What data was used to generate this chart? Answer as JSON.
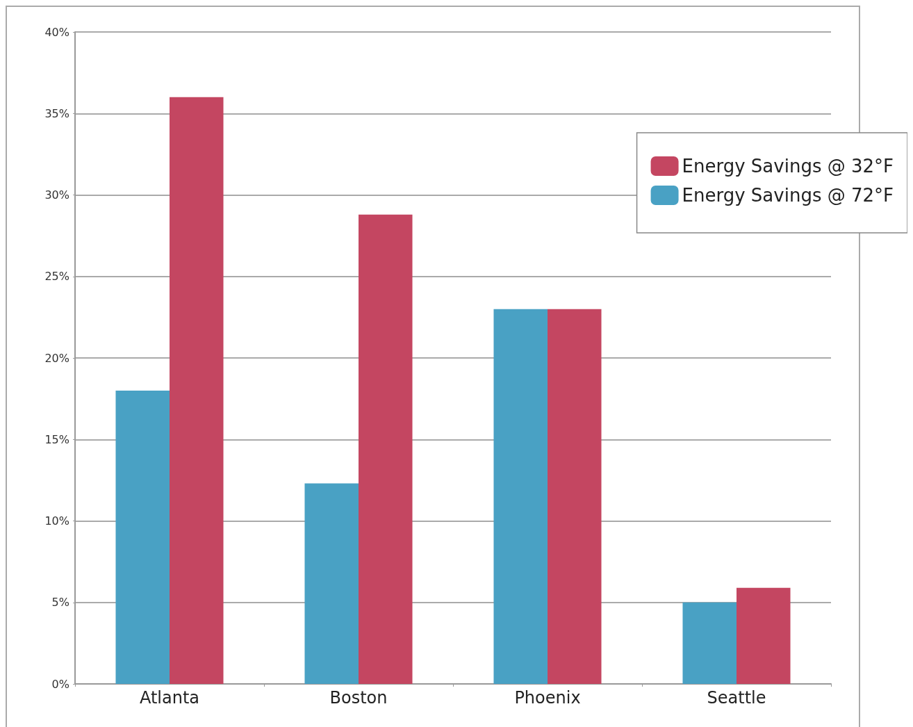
{
  "chart_data": {
    "type": "bar",
    "categories": [
      "Atlanta",
      "Boston",
      "Phoenix",
      "Seattle"
    ],
    "series": [
      {
        "name": "Energy Savings @ 72°F",
        "color": "#49a1c4",
        "values": [
          18,
          12.3,
          23,
          5
        ]
      },
      {
        "name": "Energy Savings @ 32°F",
        "color": "#c44661",
        "values": [
          36,
          28.8,
          23,
          5.9
        ]
      }
    ],
    "ylim": [
      0,
      40
    ],
    "yticks": [
      {
        "value": 0,
        "label": "0%"
      },
      {
        "value": 5,
        "label": "5%"
      },
      {
        "value": 10,
        "label": "10%"
      },
      {
        "value": 15,
        "label": "15%"
      },
      {
        "value": 20,
        "label": "20%"
      },
      {
        "value": 25,
        "label": "25%"
      },
      {
        "value": 30,
        "label": "30%"
      },
      {
        "value": 35,
        "label": "35%"
      },
      {
        "value": 40,
        "label": "40%"
      }
    ],
    "grid": "y",
    "legend": "top right"
  }
}
